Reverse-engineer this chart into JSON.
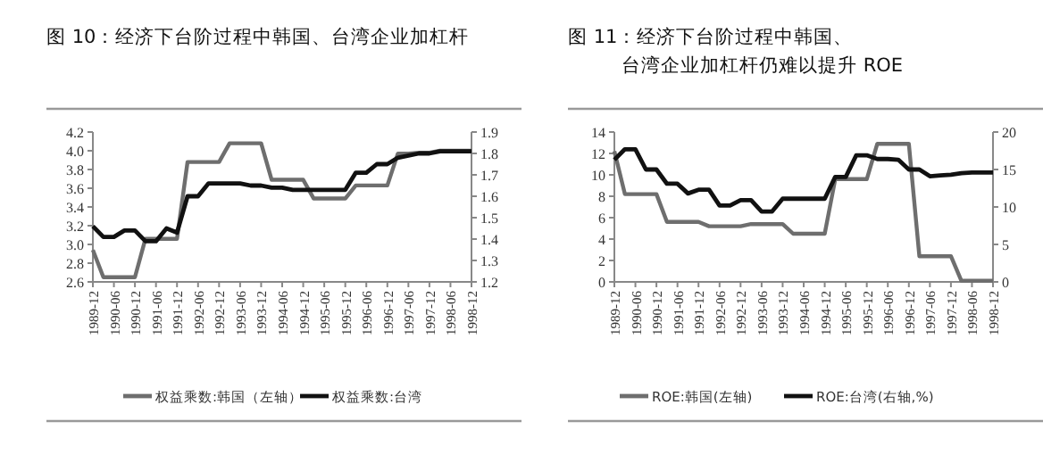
{
  "chart_data": [
    {
      "type": "line",
      "title": "图 10：经济下台阶过程中韩国、台湾企业加杠杆",
      "categories": [
        "1989-12",
        null,
        "1990-06",
        null,
        "1990-12",
        null,
        "1991-06",
        null,
        "1991-12",
        null,
        "1992-06",
        null,
        "1992-12",
        null,
        "1993-06",
        null,
        "1993-12",
        null,
        "1994-06",
        null,
        "1994-12",
        null,
        "1995-06",
        null,
        "1995-12",
        null,
        "1996-06",
        null,
        "1996-12",
        null,
        "1997-06",
        null,
        "1997-12",
        null,
        "1998-06",
        null,
        "1998-12"
      ],
      "series": [
        {
          "name": "权益乘数:韩国（左轴）",
          "color": "#6e6e6e",
          "values": [
            2.94,
            2.65,
            2.65,
            2.65,
            2.65,
            3.06,
            3.06,
            3.06,
            3.06,
            3.88,
            3.88,
            3.88,
            3.88,
            4.08,
            4.08,
            4.08,
            4.08,
            3.69,
            3.69,
            3.69,
            3.69,
            3.49,
            3.49,
            3.49,
            3.49,
            3.63,
            3.63,
            3.63,
            3.63,
            3.97,
            3.97,
            3.98,
            3.98,
            4.0,
            4.0,
            4.0,
            4.0
          ]
        },
        {
          "name": "权益乘数:台湾",
          "color": "#111111",
          "axis": "y2",
          "values": [
            1.46,
            1.41,
            1.41,
            1.44,
            1.44,
            1.39,
            1.39,
            1.45,
            1.43,
            1.6,
            1.6,
            1.66,
            1.66,
            1.66,
            1.66,
            1.65,
            1.65,
            1.64,
            1.64,
            1.63,
            1.63,
            1.63,
            1.63,
            1.63,
            1.63,
            1.71,
            1.71,
            1.75,
            1.75,
            1.78,
            1.79,
            1.8,
            1.8,
            1.81,
            1.81,
            1.81,
            1.81
          ]
        }
      ],
      "ylim": [
        2.6,
        4.2
      ],
      "yticks": [
        2.6,
        2.8,
        {
          "value": 3,
          "label": "3.0"
        },
        3.2,
        3.4,
        3.6,
        3.8,
        {
          "value": 4,
          "label": "4.0"
        },
        4.2
      ],
      "y2lim": [
        1.2,
        1.9
      ],
      "y2ticks": [
        1.2,
        1.3,
        1.4,
        1.5,
        1.6,
        1.7,
        1.8,
        1.9
      ],
      "legend": "bottom",
      "grid": false
    },
    {
      "type": "line",
      "title": "图 11：经济下台阶过程中韩国、台湾企业加杠杆仍难以提升 ROE",
      "categories": [
        "1989-12",
        null,
        "1990-06",
        null,
        "1990-12",
        null,
        "1991-06",
        null,
        "1991-12",
        null,
        "1992-06",
        null,
        "1992-12",
        null,
        "1993-06",
        null,
        "1993-12",
        null,
        "1994-06",
        null,
        "1994-12",
        null,
        "1995-06",
        null,
        "1995-12",
        null,
        "1996-06",
        null,
        "1996-12",
        null,
        "1997-06",
        null,
        "1997-12",
        null,
        "1998-06",
        null,
        "1998-12"
      ],
      "series": [
        {
          "name": "ROE:韩国(左轴)",
          "color": "#6e6e6e",
          "values": [
            12.2,
            8.2,
            8.2,
            8.2,
            8.2,
            5.6,
            5.6,
            5.6,
            5.6,
            5.2,
            5.2,
            5.2,
            5.2,
            5.4,
            5.4,
            5.4,
            5.4,
            4.5,
            4.5,
            4.5,
            4.5,
            9.6,
            9.6,
            9.6,
            9.6,
            12.9,
            12.9,
            12.9,
            12.9,
            2.4,
            2.4,
            2.4,
            2.4,
            0.1,
            0.1,
            0.1,
            0.1
          ]
        },
        {
          "name": "ROE:台湾(右轴,%)",
          "color": "#111111",
          "axis": "y2",
          "values": [
            16.3,
            17.7,
            17.7,
            15.0,
            15.0,
            13.1,
            13.1,
            11.8,
            12.3,
            12.3,
            10.2,
            10.2,
            10.9,
            10.9,
            9.4,
            9.4,
            11.1,
            11.1,
            11.1,
            11.1,
            11.1,
            14.0,
            14.0,
            16.9,
            16.9,
            16.4,
            16.4,
            16.3,
            15.0,
            15.0,
            14.1,
            14.2,
            14.3,
            14.5,
            14.6,
            14.6,
            14.6
          ]
        }
      ],
      "ylim": [
        0,
        14
      ],
      "yticks": [
        0,
        2,
        4,
        6,
        8,
        10,
        12,
        14
      ],
      "y2lim": [
        0,
        20
      ],
      "y2ticks": [
        0,
        5,
        10,
        15,
        20
      ],
      "legend": "bottom",
      "grid": false
    }
  ]
}
